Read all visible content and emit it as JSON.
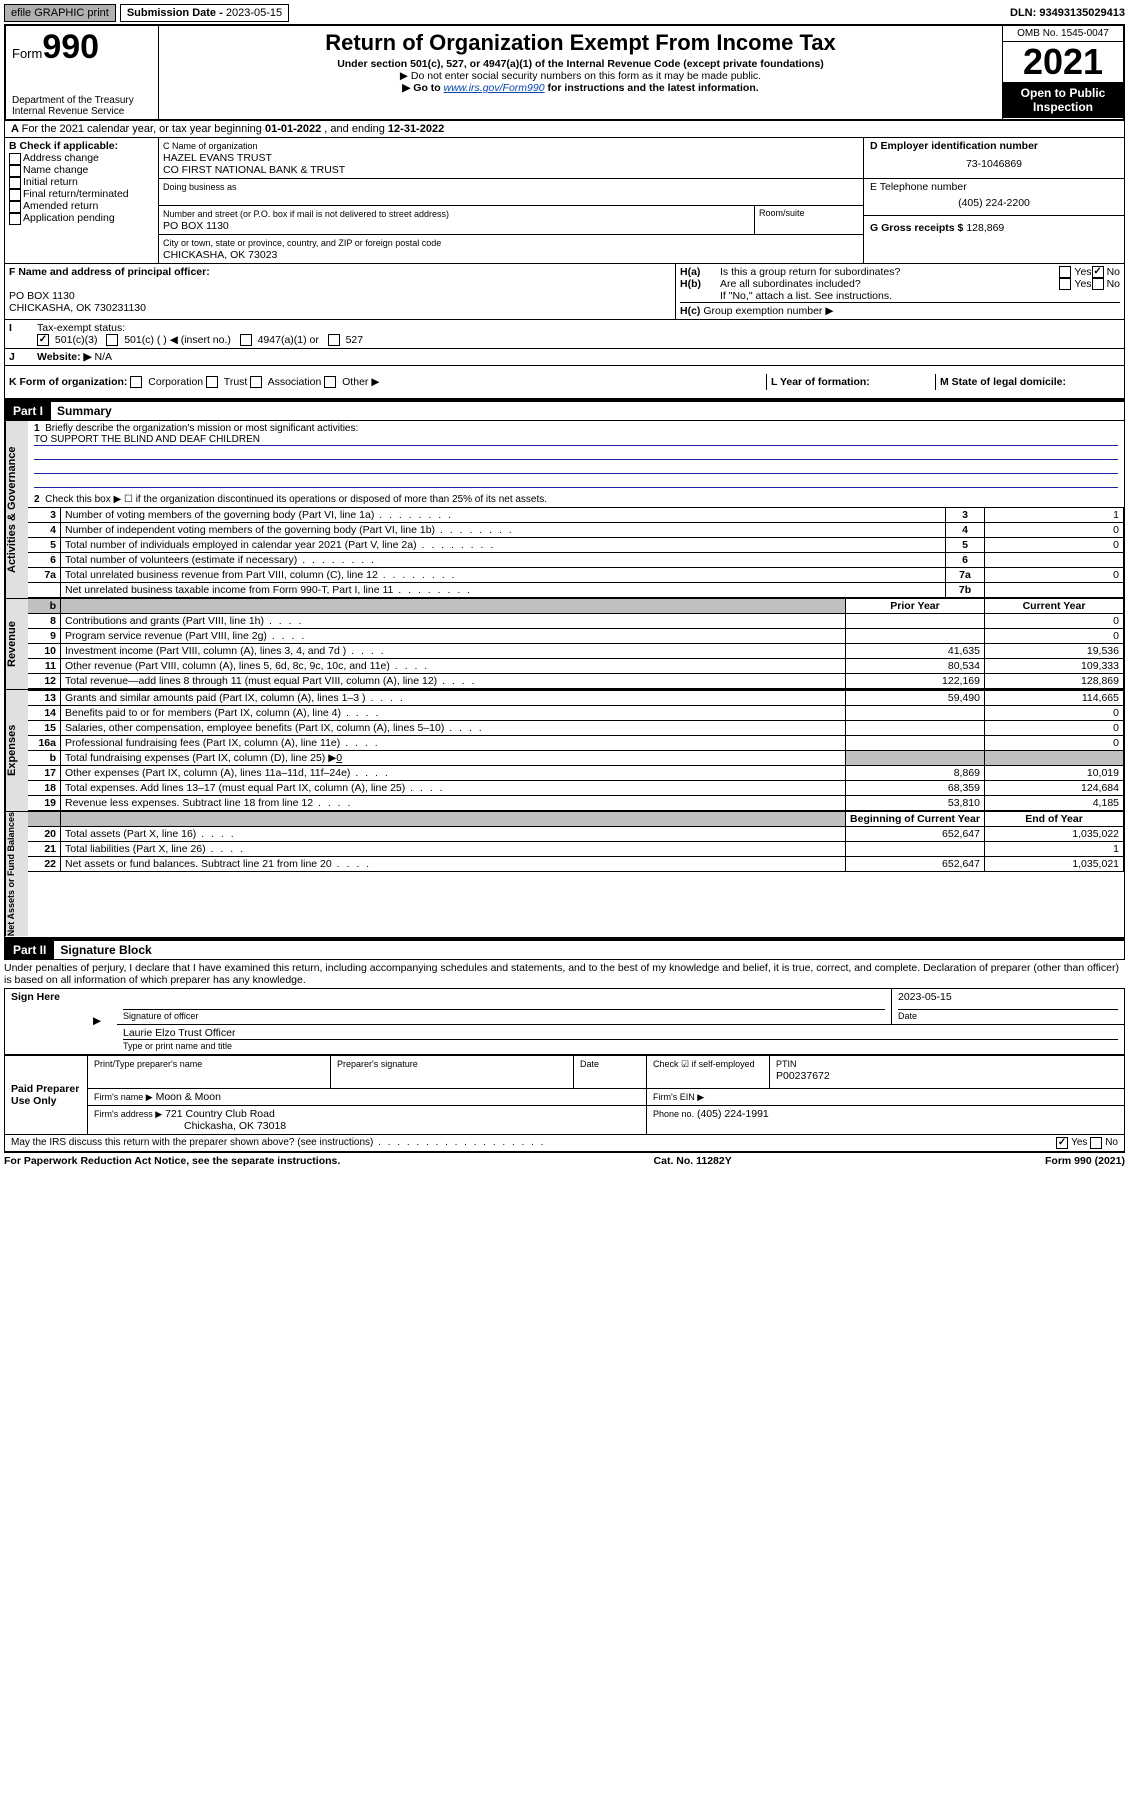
{
  "topbar": {
    "efile": "efile GRAPHIC print",
    "subdate_label": "Submission Date - ",
    "subdate": "2023-05-15",
    "dln": "DLN: 93493135029413"
  },
  "header": {
    "form_prefix": "Form",
    "form_num": "990",
    "dept": "Department of the Treasury",
    "irs": "Internal Revenue Service",
    "title": "Return of Organization Exempt From Income Tax",
    "sub1": "Under section 501(c), 527, or 4947(a)(1) of the Internal Revenue Code (except private foundations)",
    "sub2": "▶ Do not enter social security numbers on this form as it may be made public.",
    "sub3_pre": "▶ Go to ",
    "sub3_link": "www.irs.gov/Form990",
    "sub3_post": " for instructions and the latest information.",
    "omb": "OMB No. 1545-0047",
    "year": "2021",
    "open": "Open to Public Inspection"
  },
  "line_a": {
    "text_pre": "For the 2021 calendar year, or tax year beginning ",
    "begin": "01-01-2022",
    "text_mid": " , and ending ",
    "end": "12-31-2022"
  },
  "box_b": {
    "title": "B Check if applicable:",
    "opts": [
      "Address change",
      "Name change",
      "Initial return",
      "Final return/terminated",
      "Amended return",
      "Application pending"
    ]
  },
  "box_c": {
    "label": "C Name of organization",
    "name1": "HAZEL EVANS TRUST",
    "name2": "CO FIRST NATIONAL BANK & TRUST",
    "dba_label": "Doing business as",
    "addr_label": "Number and street (or P.O. box if mail is not delivered to street address)",
    "room_label": "Room/suite",
    "addr": "PO BOX 1130",
    "city_label": "City or town, state or province, country, and ZIP or foreign postal code",
    "city": "CHICKASHA, OK  73023"
  },
  "box_d": {
    "label": "D Employer identification number",
    "val": "73-1046869"
  },
  "box_e": {
    "label": "E Telephone number",
    "val": "(405) 224-2200"
  },
  "box_g": {
    "label": "G Gross receipts $",
    "val": "128,869"
  },
  "box_f": {
    "label": "F Name and address of principal officer:",
    "line1": "PO BOX 1130",
    "line2": "CHICKASHA, OK  730231130"
  },
  "box_h": {
    "ha": "Is this a group return for subordinates?",
    "hb": "Are all subordinates included?",
    "hnote": "If \"No,\" attach a list. See instructions.",
    "hc": "Group exemption number ▶",
    "yes": "Yes",
    "no": "No"
  },
  "line_i": {
    "label": "Tax-exempt status:",
    "o1": "501(c)(3)",
    "o2": "501(c) (  ) ◀ (insert no.)",
    "o3": "4947(a)(1) or",
    "o4": "527"
  },
  "line_j": {
    "label": "Website: ▶",
    "val": "N/A"
  },
  "line_k": {
    "label": "K Form of organization:",
    "o1": "Corporation",
    "o2": "Trust",
    "o3": "Association",
    "o4": "Other ▶"
  },
  "line_l": {
    "label": "L Year of formation:",
    "val": ""
  },
  "line_m": {
    "label": "M State of legal domicile:",
    "val": ""
  },
  "part1": {
    "header": "Part I",
    "title": "Summary",
    "l1": "Briefly describe the organization's mission or most significant activities:",
    "l1_val": "TO SUPPORT THE BLIND AND DEAF CHILDREN",
    "l2": "Check this box ▶ ☐ if the organization discontinued its operations or disposed of more than 25% of its net assets.",
    "rows_gov": [
      {
        "n": "3",
        "label": "Number of voting members of the governing body (Part VI, line 1a)",
        "ref": "3",
        "val": "1"
      },
      {
        "n": "4",
        "label": "Number of independent voting members of the governing body (Part VI, line 1b)",
        "ref": "4",
        "val": "0"
      },
      {
        "n": "5",
        "label": "Total number of individuals employed in calendar year 2021 (Part V, line 2a)",
        "ref": "5",
        "val": "0"
      },
      {
        "n": "6",
        "label": "Total number of volunteers (estimate if necessary)",
        "ref": "6",
        "val": ""
      },
      {
        "n": "7a",
        "label": "Total unrelated business revenue from Part VIII, column (C), line 12",
        "ref": "7a",
        "val": "0"
      },
      {
        "n": "",
        "label": "Net unrelated business taxable income from Form 990-T, Part I, line 11",
        "ref": "7b",
        "val": ""
      }
    ],
    "col_prior": "Prior Year",
    "col_current": "Current Year",
    "rows_rev": [
      {
        "n": "8",
        "label": "Contributions and grants (Part VIII, line 1h)",
        "p": "",
        "c": "0"
      },
      {
        "n": "9",
        "label": "Program service revenue (Part VIII, line 2g)",
        "p": "",
        "c": "0"
      },
      {
        "n": "10",
        "label": "Investment income (Part VIII, column (A), lines 3, 4, and 7d )",
        "p": "41,635",
        "c": "19,536"
      },
      {
        "n": "11",
        "label": "Other revenue (Part VIII, column (A), lines 5, 6d, 8c, 9c, 10c, and 11e)",
        "p": "80,534",
        "c": "109,333"
      },
      {
        "n": "12",
        "label": "Total revenue—add lines 8 through 11 (must equal Part VIII, column (A), line 12)",
        "p": "122,169",
        "c": "128,869"
      }
    ],
    "rows_exp": [
      {
        "n": "13",
        "label": "Grants and similar amounts paid (Part IX, column (A), lines 1–3 )",
        "p": "59,490",
        "c": "114,665"
      },
      {
        "n": "14",
        "label": "Benefits paid to or for members (Part IX, column (A), line 4)",
        "p": "",
        "c": "0"
      },
      {
        "n": "15",
        "label": "Salaries, other compensation, employee benefits (Part IX, column (A), lines 5–10)",
        "p": "",
        "c": "0"
      },
      {
        "n": "16a",
        "label": "Professional fundraising fees (Part IX, column (A), line 11e)",
        "p": "",
        "c": "0"
      }
    ],
    "l16b_pre": "Total fundraising expenses (Part IX, column (D), line 25) ▶",
    "l16b_val": "0",
    "rows_exp2": [
      {
        "n": "17",
        "label": "Other expenses (Part IX, column (A), lines 11a–11d, 11f–24e)",
        "p": "8,869",
        "c": "10,019"
      },
      {
        "n": "18",
        "label": "Total expenses. Add lines 13–17 (must equal Part IX, column (A), line 25)",
        "p": "68,359",
        "c": "124,684"
      },
      {
        "n": "19",
        "label": "Revenue less expenses. Subtract line 18 from line 12",
        "p": "53,810",
        "c": "4,185"
      }
    ],
    "col_begin": "Beginning of Current Year",
    "col_end": "End of Year",
    "rows_net": [
      {
        "n": "20",
        "label": "Total assets (Part X, line 16)",
        "p": "652,647",
        "c": "1,035,022"
      },
      {
        "n": "21",
        "label": "Total liabilities (Part X, line 26)",
        "p": "",
        "c": "1"
      },
      {
        "n": "22",
        "label": "Net assets or fund balances. Subtract line 21 from line 20",
        "p": "652,647",
        "c": "1,035,021"
      }
    ],
    "side_gov": "Activities & Governance",
    "side_rev": "Revenue",
    "side_exp": "Expenses",
    "side_net": "Net Assets or Fund Balances"
  },
  "part2": {
    "header": "Part II",
    "title": "Signature Block",
    "perjury": "Under penalties of perjury, I declare that I have examined this return, including accompanying schedules and statements, and to the best of my knowledge and belief, it is true, correct, and complete. Declaration of preparer (other than officer) is based on all information of which preparer has any knowledge.",
    "sign_here": "Sign Here",
    "sig_officer": "Signature of officer",
    "date": "Date",
    "sig_date_val": "2023-05-15",
    "name_title": "Laurie Elzo  Trust Officer",
    "name_title_label": "Type or print name and title",
    "paid": "Paid Preparer Use Only",
    "prep_name_label": "Print/Type preparer's name",
    "prep_sig_label": "Preparer's signature",
    "date_label": "Date",
    "check_if": "Check ☑ if self-employed",
    "ptin_label": "PTIN",
    "ptin": "P00237672",
    "firm_name_label": "Firm's name    ▶",
    "firm_name": "Moon & Moon",
    "firm_ein_label": "Firm's EIN ▶",
    "firm_addr_label": "Firm's address ▶",
    "firm_addr1": "721 Country Club Road",
    "firm_addr2": "Chickasha, OK  73018",
    "phone_label": "Phone no.",
    "phone": "(405) 224-1991",
    "may_irs": "May the IRS discuss this return with the preparer shown above? (see instructions)",
    "yes": "Yes",
    "no": "No"
  },
  "footer": {
    "left": "For Paperwork Reduction Act Notice, see the separate instructions.",
    "mid": "Cat. No. 11282Y",
    "right": "Form 990 (2021)"
  }
}
